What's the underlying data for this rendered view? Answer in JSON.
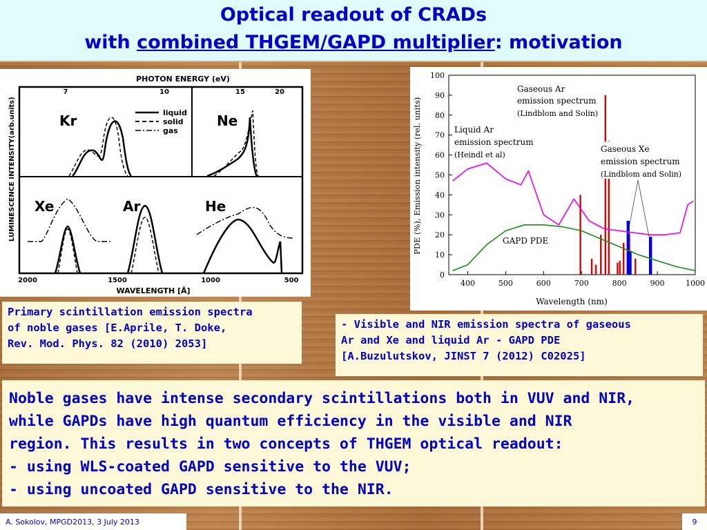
{
  "title": {
    "line1": "Optical readout of CRADs",
    "line2_prefix": "with ",
    "line2_underlined": "combined THGEM/GAPD multiplier",
    "line2_suffix": ": motivation"
  },
  "left_figure": {
    "top_axis_title": "PHOTON ENERGY (eV)",
    "top_ticks": [
      "7",
      "10",
      "15",
      "20"
    ],
    "y_axis_title": "LUMINESCENCE INTENSITY(arb.units)",
    "bottom_axis_title": "WAVELENGTH  [Å]",
    "bottom_ticks": [
      "2000",
      "1500",
      "1000",
      "500"
    ],
    "panels": [
      "Kr",
      "Ne",
      "Xe",
      "Ar",
      "He"
    ],
    "legend": [
      "liquid",
      "solid",
      "gas"
    ]
  },
  "right_figure": {
    "y_axis_title": "PDE (%), Emission intensity (rel. units)",
    "x_axis_title": "Wavelength (nm)",
    "y_ticks": [
      "0",
      "10",
      "20",
      "30",
      "40",
      "50",
      "60",
      "70",
      "80",
      "90",
      "100"
    ],
    "x_ticks": [
      "400",
      "500",
      "600",
      "700",
      "800",
      "900",
      "1000"
    ],
    "ann_ar": [
      "Gaseous Ar",
      "emission spectrum",
      "(Lindblom and Solin)"
    ],
    "ann_liq": [
      "Liquid Ar",
      "emission spectrum",
      "(Heindl et al)"
    ],
    "ann_xe": [
      "Gaseous Xe",
      "emission spectrum",
      "(Lindblom and Solin)"
    ],
    "ann_gapd": "GAPD PDE",
    "colors": {
      "liquid_ar": "#ee00ee",
      "gapd": "#1a8a1a",
      "gas_ar": "#dd0000",
      "gas_xe": "#0000dd"
    }
  },
  "chart_data": {
    "type": "line",
    "xlabel": "Wavelength (nm)",
    "ylabel": "PDE (%), Emission intensity (rel. units)",
    "xlim": [
      350,
      1000
    ],
    "ylim": [
      0,
      100
    ],
    "series": [
      {
        "x": [
          360,
          400,
          450,
          500,
          540,
          560,
          600,
          640,
          680,
          720,
          760,
          800,
          840,
          880,
          920,
          960,
          980,
          995
        ],
        "y": [
          47,
          53,
          56,
          48,
          45,
          52,
          30,
          25,
          38,
          27,
          23,
          22,
          21,
          20,
          20,
          21,
          35,
          37
        ]
      },
      {
        "x": [
          360,
          400,
          450,
          500,
          550,
          600,
          650,
          700,
          750,
          800,
          850,
          900,
          950,
          1000
        ],
        "y": [
          2,
          5,
          15,
          22,
          25,
          25,
          24,
          22,
          18,
          14,
          10,
          7,
          4,
          2
        ]
      }
    ],
    "bars_gas_ar": [
      {
        "x": 697,
        "y": 40
      },
      {
        "x": 727,
        "y": 8
      },
      {
        "x": 738,
        "y": 5
      },
      {
        "x": 751,
        "y": 20
      },
      {
        "x": 763,
        "y": 90
      },
      {
        "x": 772,
        "y": 67
      },
      {
        "x": 795,
        "y": 6
      },
      {
        "x": 801,
        "y": 7
      },
      {
        "x": 811,
        "y": 16
      },
      {
        "x": 826,
        "y": 20
      },
      {
        "x": 842,
        "y": 8
      }
    ],
    "bars_gas_xe": [
      {
        "x": 823,
        "y": 27
      },
      {
        "x": 828,
        "y": 12
      },
      {
        "x": 882,
        "y": 19
      }
    ]
  },
  "caption_left": [
    "Primary scintillation emission spectra",
    "of noble gases [E.Aprile, T. Doke,",
    "Rev. Mod. Phys. 82 (2010) 2053]"
  ],
  "caption_right": [
    "- Visible and NIR emission spectra of gaseous",
    "Ar and Xe and liquid Ar - GAPD PDE",
    "[A.Buzulutskov, JINST 7 (2012) C02025]"
  ],
  "main_text": [
    "Noble gases have intense secondary scintillations both in VUV and NIR,",
    "while GAPDs have high quantum efficiency in the visible and NIR",
    "region. This results in two concepts of THGEM optical readout:",
    "- using WLS-coated GAPD sensitive to the VUV;",
    "- using uncoated GAPD sensitive to the NIR."
  ],
  "footer": {
    "left": "A. Sokolov, MPGD2013, 3 July 2013",
    "page": "9"
  }
}
